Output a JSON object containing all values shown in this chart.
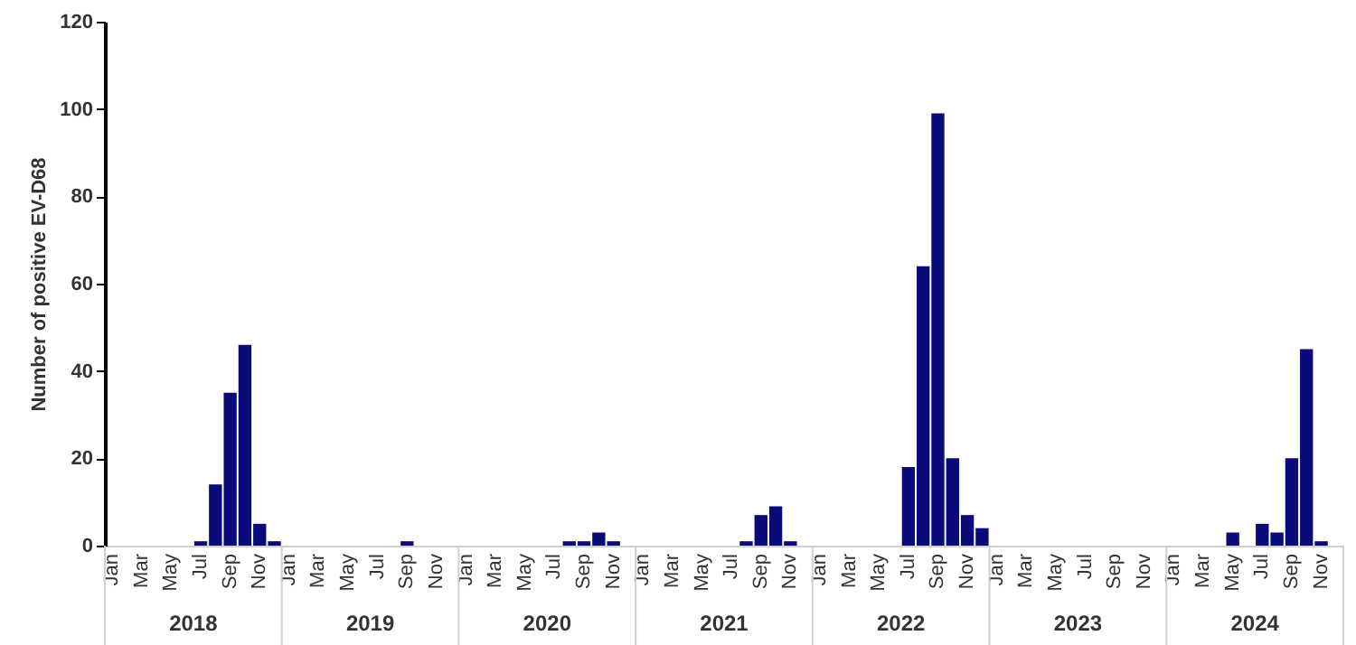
{
  "chart_data": {
    "type": "bar",
    "ylabel": "Number of positive EV-D68",
    "categories": [
      "Jan",
      null,
      "Mar",
      null,
      "May",
      null,
      "Jul",
      null,
      "Sep",
      null,
      "Nov",
      null,
      "Jan",
      null,
      "Mar",
      null,
      "May",
      null,
      "Jul",
      null,
      "Sep",
      null,
      "Nov",
      null,
      "Jan",
      null,
      "Mar",
      null,
      "May",
      null,
      "Jul",
      null,
      "Sep",
      null,
      "Nov",
      null,
      "Jan",
      null,
      "Mar",
      null,
      "May",
      null,
      "Jul",
      null,
      "Sep",
      null,
      "Nov",
      null,
      "Jan",
      null,
      "Mar",
      null,
      "May",
      null,
      "Jul",
      null,
      "Sep",
      null,
      "Nov",
      null,
      "Jan",
      null,
      "Mar",
      null,
      "May",
      null,
      "Jul",
      null,
      "Sep",
      null,
      "Nov",
      null,
      "Jan",
      null,
      "Mar",
      null,
      "May",
      null,
      "Jul",
      null,
      "Sep",
      null,
      "Nov",
      null
    ],
    "values": [
      0,
      0,
      0,
      0,
      0,
      0,
      1,
      14,
      35,
      46,
      5,
      1,
      0,
      0,
      0,
      0,
      0,
      0,
      0,
      0,
      1,
      0,
      0,
      0,
      0,
      0,
      0,
      0,
      0,
      0,
      0,
      1,
      1,
      3,
      1,
      0,
      0,
      0,
      0,
      0,
      0,
      0,
      0,
      1,
      7,
      9,
      1,
      0,
      0,
      0,
      0,
      0,
      0,
      0,
      18,
      64,
      99,
      20,
      7,
      4,
      0,
      0,
      0,
      0,
      0,
      0,
      0,
      0,
      0,
      0,
      0,
      0,
      0,
      0,
      0,
      0,
      3,
      0,
      5,
      3,
      20,
      45,
      1,
      0
    ],
    "color": "#0a0a78",
    "ylim": [
      0,
      120
    ],
    "yticks": [
      0,
      20,
      40,
      60,
      80,
      100,
      120
    ],
    "annotations": [
      "2018",
      "2019",
      "2020",
      "2021",
      "2022",
      "2023",
      "2024"
    ],
    "grid": false
  }
}
